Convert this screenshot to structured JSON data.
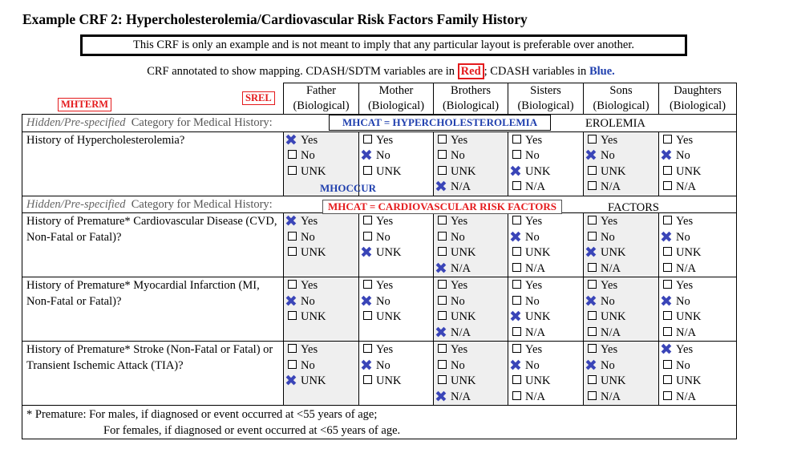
{
  "title": "Example CRF 2: Hypercholesterolemia/Cardiovascular Risk Factors Family History",
  "disclaimer": "This CRF is only an example and is not meant to imply that any particular layout is preferable over another.",
  "annotation_note": {
    "prefix": "CRF annotated to show mapping. CDASH/SDTM variables are in ",
    "red_word": "Red",
    "middle": "; CDASH variables in ",
    "blue_word": "Blue."
  },
  "tags": {
    "mhterm": "MHTERM",
    "srel": "SREL",
    "mhoccur": "MHOCCUR"
  },
  "columns": [
    {
      "name": "Father",
      "sub": "(Biological)"
    },
    {
      "name": "Mother",
      "sub": "(Biological)"
    },
    {
      "name": "Brothers",
      "sub": "(Biological)"
    },
    {
      "name": "Sisters",
      "sub": "(Biological)"
    },
    {
      "name": "Sons",
      "sub": "(Biological)"
    },
    {
      "name": "Daughters",
      "sub": "(Biological)"
    }
  ],
  "category_rows": [
    {
      "hidden": "Hidden/Pre-specified",
      "label": "Category for Medical History:",
      "mapping": "MHCAT = HYPERCHOLESTEROLEMIA",
      "peek": "EROLEMIA"
    },
    {
      "hidden": "Hidden/Pre-specified",
      "label": "Category for Medical History:",
      "mapping": "MHCAT = CARDIOVASCULAR RISK FACTORS",
      "peek": "FACTORS"
    }
  ],
  "questions": [
    {
      "text": "History of Hypercholesterolemia?",
      "answers": [
        {
          "opts": [
            "Yes",
            "No",
            "UNK"
          ],
          "checked": "Yes"
        },
        {
          "opts": [
            "Yes",
            "No",
            "UNK"
          ],
          "checked": "No"
        },
        {
          "opts": [
            "Yes",
            "No",
            "UNK",
            "N/A"
          ],
          "checked": "N/A"
        },
        {
          "opts": [
            "Yes",
            "No",
            "UNK",
            "N/A"
          ],
          "checked": "UNK"
        },
        {
          "opts": [
            "Yes",
            "No",
            "UNK",
            "N/A"
          ],
          "checked": "No"
        },
        {
          "opts": [
            "Yes",
            "No",
            "UNK",
            "N/A"
          ],
          "checked": "No"
        }
      ]
    },
    {
      "text": "History of Premature* Cardiovascular Disease (CVD, Non-Fatal or Fatal)?",
      "answers": [
        {
          "opts": [
            "Yes",
            "No",
            "UNK"
          ],
          "checked": "Yes"
        },
        {
          "opts": [
            "Yes",
            "No",
            "UNK"
          ],
          "checked": "UNK"
        },
        {
          "opts": [
            "Yes",
            "No",
            "UNK",
            "N/A"
          ],
          "checked": "N/A"
        },
        {
          "opts": [
            "Yes",
            "No",
            "UNK",
            "N/A"
          ],
          "checked": "No"
        },
        {
          "opts": [
            "Yes",
            "No",
            "UNK",
            "N/A"
          ],
          "checked": "UNK"
        },
        {
          "opts": [
            "Yes",
            "No",
            "UNK",
            "N/A"
          ],
          "checked": "No"
        }
      ]
    },
    {
      "text": "History of Premature* Myocardial Infarction (MI, Non-Fatal or Fatal)?",
      "answers": [
        {
          "opts": [
            "Yes",
            "No",
            "UNK"
          ],
          "checked": "No"
        },
        {
          "opts": [
            "Yes",
            "No",
            "UNK"
          ],
          "checked": "No"
        },
        {
          "opts": [
            "Yes",
            "No",
            "UNK",
            "N/A"
          ],
          "checked": "N/A"
        },
        {
          "opts": [
            "Yes",
            "No",
            "UNK",
            "N/A"
          ],
          "checked": "UNK"
        },
        {
          "opts": [
            "Yes",
            "No",
            "UNK",
            "N/A"
          ],
          "checked": "No"
        },
        {
          "opts": [
            "Yes",
            "No",
            "UNK",
            "N/A"
          ],
          "checked": "No"
        }
      ]
    },
    {
      "text": "History of Premature* Stroke (Non-Fatal or Fatal) or Transient Ischemic Attack (TIA)?",
      "answers": [
        {
          "opts": [
            "Yes",
            "No",
            "UNK"
          ],
          "checked": "UNK"
        },
        {
          "opts": [
            "Yes",
            "No",
            "UNK"
          ],
          "checked": "No"
        },
        {
          "opts": [
            "Yes",
            "No",
            "UNK",
            "N/A"
          ],
          "checked": "N/A"
        },
        {
          "opts": [
            "Yes",
            "No",
            "UNK",
            "N/A"
          ],
          "checked": "No"
        },
        {
          "opts": [
            "Yes",
            "No",
            "UNK",
            "N/A"
          ],
          "checked": "No"
        },
        {
          "opts": [
            "Yes",
            "No",
            "UNK",
            "N/A"
          ],
          "checked": "Yes"
        }
      ]
    }
  ],
  "footnote": {
    "line1": "* Premature:  For males, if diagnosed or event occurred at <55 years of age;",
    "line2": "For females, if diagnosed or event occurred at <65 years of age."
  },
  "colors": {
    "annotation_red": "#e41a1c",
    "annotation_blue": "#1f3fae",
    "check_mark": "#3a45b8",
    "shade": "#efefef"
  },
  "icons": {
    "checkbox": "checkbox-icon",
    "mark": "x-mark-icon"
  }
}
